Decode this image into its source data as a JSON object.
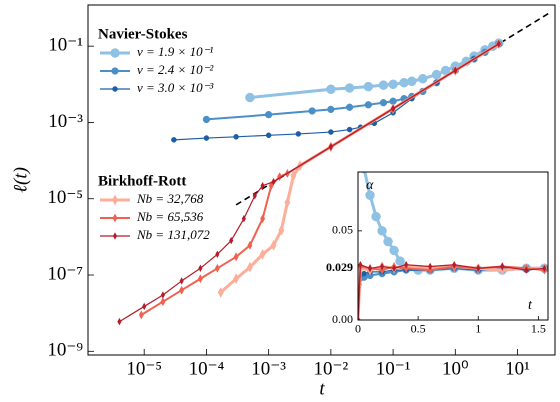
{
  "chart_data": [
    {
      "type": "line",
      "xscale": "log",
      "yscale": "log",
      "xlabel": "t",
      "ylabel": "ℓ(t)",
      "xlim": [
        1.25e-06,
        40
      ],
      "ylim": [
        8e-10,
        1.2
      ],
      "xticks": [
        {
          "value": 1e-05,
          "label": "10⁻⁵"
        },
        {
          "value": 0.0001,
          "label": "10⁻⁴"
        },
        {
          "value": 0.001,
          "label": "10⁻³"
        },
        {
          "value": 0.01,
          "label": "10⁻²"
        },
        {
          "value": 0.1,
          "label": "10⁻¹"
        },
        {
          "value": 1,
          "label": "10⁰"
        },
        {
          "value": 10,
          "label": "10¹"
        }
      ],
      "yticks": [
        {
          "value": 1e-09,
          "label": "10⁻⁹"
        },
        {
          "value": 1e-07,
          "label": "10⁻⁷"
        },
        {
          "value": 1e-05,
          "label": "10⁻⁵"
        },
        {
          "value": 0.001,
          "label": "10⁻³"
        },
        {
          "value": 0.1,
          "label": "10⁻¹"
        }
      ],
      "reference_line": {
        "color": "#000000",
        "x": [
          0.0003,
          35
        ],
        "values": [
          6.9e-06,
          0.8
        ]
      },
      "series_groups": [
        {
          "title": "Navier-Stokes",
          "series": [
            {
              "name": "ν = 1.9 × 10⁻¹",
              "color": "#8ec1e3",
              "linewidth": 3,
              "marker": "circle",
              "x": [
                0.0005,
                0.01,
                0.02,
                0.04,
                0.07,
                0.1,
                0.15,
                0.2,
                0.3,
                0.5,
                0.7,
                1,
                1.5,
                2,
                3,
                4,
                5
              ],
              "values": [
                0.0045,
                0.0074,
                0.008,
                0.0087,
                0.0095,
                0.01,
                0.011,
                0.012,
                0.014,
                0.018,
                0.023,
                0.03,
                0.04,
                0.055,
                0.08,
                0.1,
                0.12
              ]
            },
            {
              "name": "ν = 2.4 × 10⁻²",
              "color": "#4b8fc7",
              "linewidth": 2,
              "marker": "circle",
              "x": [
                0.0001,
                0.001,
                0.005,
                0.01,
                0.02,
                0.04,
                0.07,
                0.1,
                0.15,
                0.2,
                0.3,
                0.5,
                1,
                2,
                3,
                5
              ],
              "values": [
                0.0012,
                0.0016,
                0.002,
                0.0022,
                0.0025,
                0.0029,
                0.0033,
                0.0036,
                0.0042,
                0.0048,
                0.0065,
                0.011,
                0.023,
                0.046,
                0.069,
                0.115
              ]
            },
            {
              "name": "ν = 3.0 × 10⁻³",
              "color": "#1d5fa6",
              "linewidth": 1.2,
              "marker": "circle",
              "x": [
                3e-05,
                0.0001,
                0.0003,
                0.001,
                0.003,
                0.01,
                0.02,
                0.03,
                0.05,
                0.1,
                0.2,
                0.5,
                1,
                2,
                5
              ],
              "values": [
                0.00035,
                0.00039,
                0.00042,
                0.00046,
                0.0005,
                0.00056,
                0.00065,
                0.00075,
                0.00095,
                0.0018,
                0.0042,
                0.011,
                0.023,
                0.046,
                0.115
              ]
            }
          ]
        },
        {
          "title": "Birkhoff-Rott",
          "series": [
            {
              "name": "Nb = 32,768",
              "color": "#fcae9a",
              "linewidth": 3,
              "marker": "diamond",
              "x": [
                0.00017,
                0.0003,
                0.0005,
                0.0008,
                0.0012,
                0.0016,
                0.002,
                0.0025,
                0.0032,
                0.01,
                0.1,
                1,
                5
              ],
              "values": [
                3.5e-08,
                8e-08,
                1.6e-07,
                3.5e-07,
                6e-07,
                1.5e-06,
                8e-06,
                4e-05,
                7.4e-05,
                0.00023,
                0.0023,
                0.023,
                0.115
              ]
            },
            {
              "name": "Nb = 65,536",
              "color": "#f0624f",
              "linewidth": 2,
              "marker": "diamond",
              "x": [
                9e-06,
                2e-05,
                4e-05,
                8e-05,
                0.00015,
                0.0003,
                0.0005,
                0.0008,
                0.0011,
                0.0015,
                0.002,
                0.01,
                0.1,
                1,
                5
              ],
              "values": [
                9e-09,
                2e-08,
                4e-08,
                8e-08,
                1.5e-07,
                3e-07,
                6e-07,
                3e-06,
                2.2e-05,
                3.8e-05,
                4.6e-05,
                0.00023,
                0.0023,
                0.023,
                0.115
              ]
            },
            {
              "name": "Nb = 131,072",
              "color": "#b51c2c",
              "linewidth": 1.2,
              "marker": "diamond",
              "x": [
                4e-06,
                1e-05,
                2e-05,
                4e-05,
                8e-05,
                0.00015,
                0.00025,
                0.0004,
                0.0006,
                0.0008,
                0.0012,
                0.01,
                0.1,
                1,
                5
              ],
              "values": [
                6e-09,
                1.5e-08,
                3e-08,
                7e-08,
                1.5e-07,
                3.5e-07,
                8e-07,
                3e-06,
                1.2e-05,
                2.2e-05,
                2.8e-05,
                0.00023,
                0.0023,
                0.023,
                0.115
              ]
            }
          ]
        }
      ]
    },
    {
      "type": "line",
      "xscale": "linear",
      "yscale": "linear",
      "xlabel": "t",
      "ylabel": "α",
      "xlim": [
        0,
        1.58
      ],
      "ylim": [
        0,
        0.083
      ],
      "xticks": [
        0,
        0.5,
        1,
        1.5
      ],
      "yticks": [
        {
          "value": 0,
          "label": "0.00"
        },
        0.05
      ],
      "reference_value": {
        "value": 0.029,
        "label": "0.029",
        "color": "#000000"
      },
      "series_groups": [
        {
          "series": [
            {
              "color": "#8ec1e3",
              "linewidth": 3,
              "marker": "circle",
              "x": [
                0.05,
                0.1,
                0.15,
                0.2,
                0.25,
                0.3,
                0.35,
                0.4,
                0.5,
                0.6,
                0.8,
                1.0,
                1.2,
                1.4,
                1.55
              ],
              "values": [
                0.085,
                0.07,
                0.058,
                0.05,
                0.044,
                0.039,
                0.033,
                0.029,
                0.028,
                0.028,
                0.029,
                0.028,
                0.028,
                0.029,
                0.029
              ]
            },
            {
              "color": "#4b8fc7",
              "linewidth": 2,
              "marker": "circle",
              "x": [
                0,
                0.05,
                0.1,
                0.2,
                0.3,
                0.4,
                0.6,
                0.8,
                1.0,
                1.2,
                1.4,
                1.55
              ],
              "values": [
                0.02,
                0.024,
                0.025,
                0.026,
                0.027,
                0.028,
                0.028,
                0.029,
                0.028,
                0.029,
                0.029,
                0.029
              ]
            },
            {
              "color": "#1d5fa6",
              "linewidth": 1.2,
              "marker": "circle",
              "x": [
                0,
                0.05,
                0.1,
                0.2,
                0.3,
                0.4,
                0.6,
                0.8,
                1.0,
                1.2,
                1.4,
                1.55
              ],
              "values": [
                0.022,
                0.026,
                0.027,
                0.027,
                0.028,
                0.028,
                0.028,
                0.029,
                0.028,
                0.029,
                0.028,
                0.029
              ]
            }
          ]
        },
        {
          "series": [
            {
              "color": "#fcae9a",
              "linewidth": 3,
              "marker": "diamond",
              "x": [
                0,
                0.02,
                0.1,
                0.2,
                0.3,
                0.4,
                0.6,
                0.8,
                1.0,
                1.2,
                1.4,
                1.55
              ],
              "values": [
                0,
                0.029,
                0.028,
                0.03,
                0.029,
                0.03,
                0.029,
                0.03,
                0.029,
                0.028,
                0.029,
                0.029
              ]
            },
            {
              "color": "#f0624f",
              "linewidth": 2,
              "marker": "diamond",
              "x": [
                0,
                0.02,
                0.1,
                0.2,
                0.3,
                0.4,
                0.6,
                0.8,
                1.0,
                1.2,
                1.4,
                1.55
              ],
              "values": [
                0,
                0.03,
                0.029,
                0.028,
                0.03,
                0.029,
                0.028,
                0.03,
                0.029,
                0.03,
                0.029,
                0.028
              ]
            },
            {
              "color": "#b51c2c",
              "linewidth": 1.2,
              "marker": "diamond",
              "x": [
                0,
                0.02,
                0.1,
                0.2,
                0.3,
                0.4,
                0.6,
                0.8,
                1.0,
                1.2,
                1.4,
                1.55
              ],
              "values": [
                0,
                0.031,
                0.029,
                0.03,
                0.029,
                0.031,
                0.03,
                0.031,
                0.029,
                0.03,
                0.028,
                0.029
              ]
            }
          ]
        }
      ]
    }
  ]
}
